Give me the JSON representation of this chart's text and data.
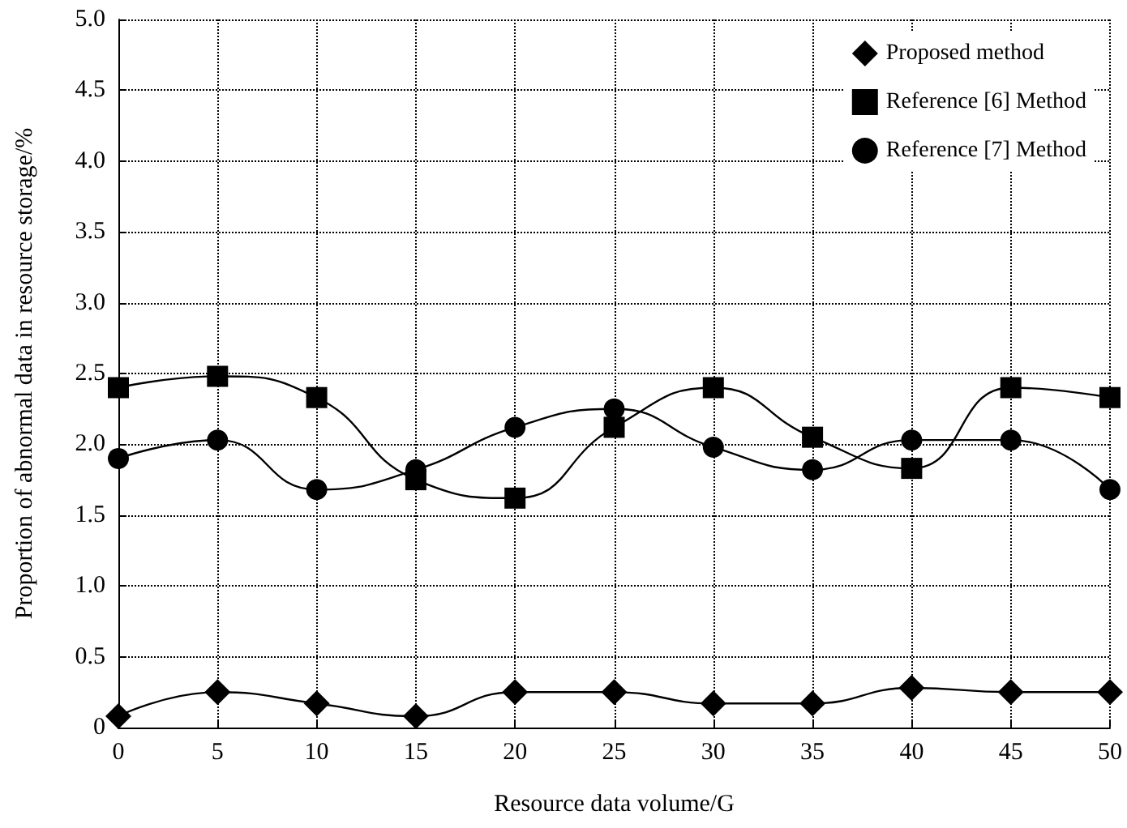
{
  "chart_data": {
    "type": "line",
    "xlabel": "Resource data volume/G",
    "ylabel": "Proportion of abnormal data in resource storage/%",
    "x": [
      0,
      5,
      10,
      15,
      20,
      25,
      30,
      35,
      40,
      45,
      50
    ],
    "series": [
      {
        "name": "Proposed method",
        "color": "#000000",
        "marker": "diamond",
        "values": [
          0.08,
          0.25,
          0.17,
          0.08,
          0.25,
          0.25,
          0.17,
          0.17,
          0.28,
          0.25,
          0.25
        ]
      },
      {
        "name": "Reference [6] Method",
        "color": "#000000",
        "marker": "square",
        "values": [
          2.4,
          2.48,
          2.33,
          1.75,
          1.62,
          2.12,
          2.4,
          2.05,
          1.83,
          2.4,
          2.33
        ]
      },
      {
        "name": "Reference [7] Method",
        "color": "#000000",
        "marker": "circle",
        "values": [
          1.9,
          2.03,
          1.68,
          1.82,
          2.12,
          2.25,
          1.98,
          1.82,
          2.03,
          2.03,
          1.68
        ]
      }
    ],
    "xlim": [
      0,
      50
    ],
    "xticks": [
      0,
      5,
      10,
      15,
      20,
      25,
      30,
      35,
      40,
      45,
      50
    ],
    "ylim": [
      0,
      5
    ],
    "yticks": [
      {
        "value": 0,
        "label": "0"
      },
      {
        "value": 0.5,
        "label": "0.5"
      },
      {
        "value": 1,
        "label": "1.0"
      },
      {
        "value": 1.5,
        "label": "1.5"
      },
      {
        "value": 2,
        "label": "2.0"
      },
      {
        "value": 2.5,
        "label": "2.5"
      },
      {
        "value": 3,
        "label": "3.0"
      },
      {
        "value": 3.5,
        "label": "3.5"
      },
      {
        "value": 4,
        "label": "4.0"
      },
      {
        "value": 4.5,
        "label": "4.5"
      },
      {
        "value": 5,
        "label": "5.0"
      }
    ],
    "grid": true,
    "legend": "top right",
    "line_style": "solid"
  }
}
